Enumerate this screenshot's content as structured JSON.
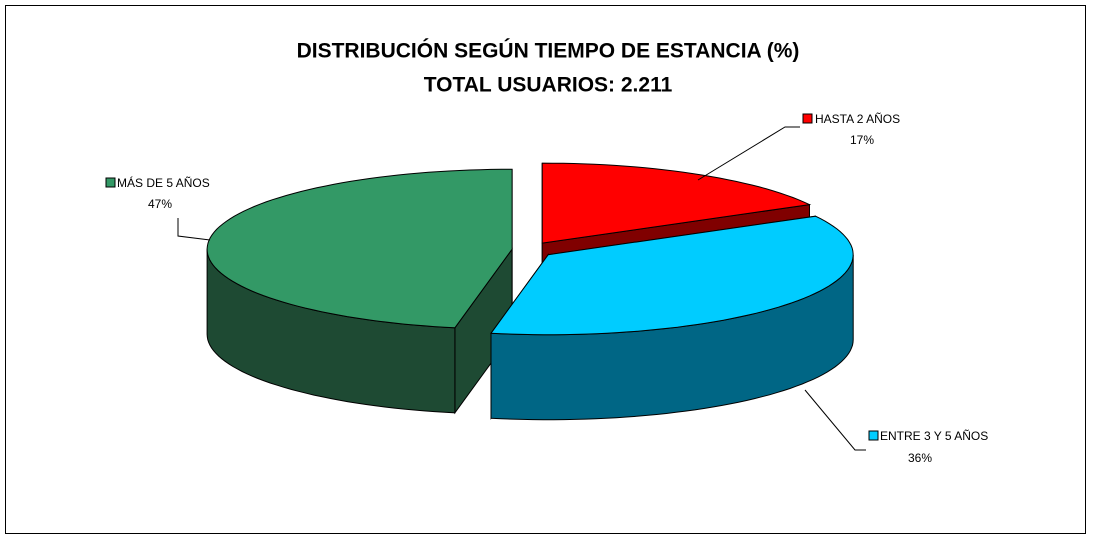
{
  "chart_data": {
    "type": "pie",
    "title": "DISTRIBUCIÓN SEGÚN TIEMPO DE ESTANCIA (%)",
    "subtitle": "TOTAL USUARIOS: 2.211",
    "categories": [
      "HASTA 2 AÑOS",
      "ENTRE 3 Y 5 AÑOS",
      "MÁS DE 5 AÑOS"
    ],
    "values": [
      17,
      36,
      47
    ],
    "value_labels": [
      "17%",
      "36%",
      "47%"
    ],
    "colors": [
      "#ff0000",
      "#00ccff",
      "#339966"
    ],
    "side_colors": [
      "#800000",
      "#006685",
      "#1e4a33"
    ]
  }
}
